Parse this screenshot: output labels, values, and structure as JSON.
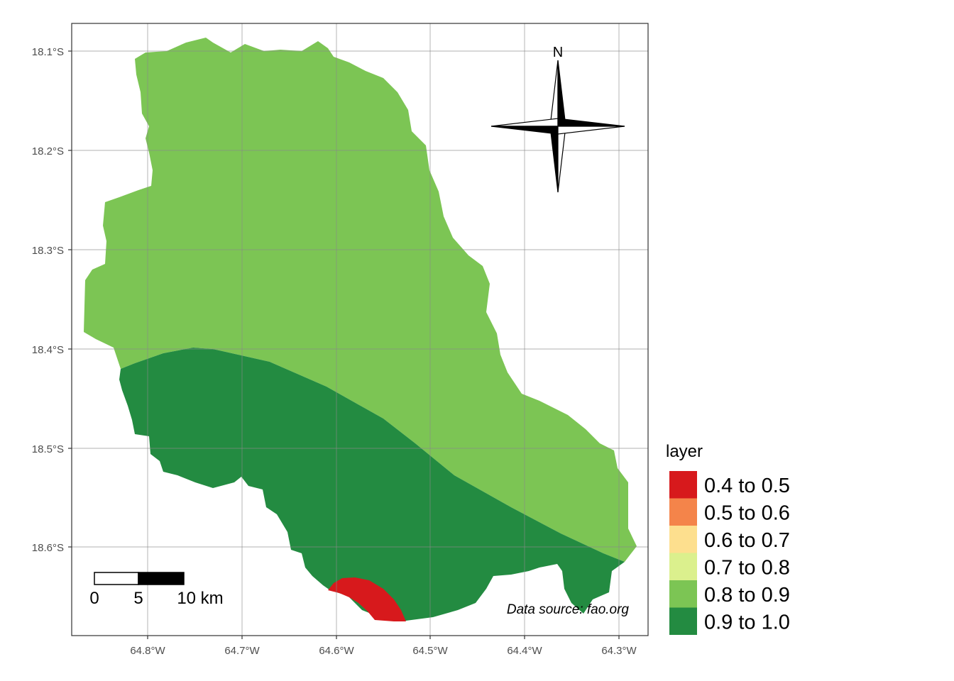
{
  "map": {
    "y_ticks": [
      "18.1°S",
      "18.2°S",
      "18.3°S",
      "18.4°S",
      "18.5°S",
      "18.6°S"
    ],
    "x_ticks": [
      "64.8°W",
      "64.7°W",
      "64.6°W",
      "64.5°W",
      "64.4°W",
      "64.3°W"
    ],
    "north_label": "N",
    "caption": "Data source: fao.org",
    "grid": true
  },
  "scale_bar": {
    "labels": [
      "0",
      "5",
      "10 km"
    ]
  },
  "legend": {
    "title": "layer",
    "items": [
      {
        "label": "0.4 to 0.5",
        "color": "#d7191c"
      },
      {
        "label": "0.5 to 0.6",
        "color": "#f4844a"
      },
      {
        "label": "0.6 to 0.7",
        "color": "#fddf8e"
      },
      {
        "label": "0.7 to 0.8",
        "color": "#dbf08d"
      },
      {
        "label": "0.8 to 0.9",
        "color": "#7cc554"
      },
      {
        "label": "0.9 to 1.0",
        "color": "#238b41"
      }
    ]
  },
  "regions": [
    {
      "class": "0.8 to 0.9",
      "color": "#7cc554"
    },
    {
      "class": "0.9 to 1.0",
      "color": "#238b41"
    },
    {
      "class": "0.4 to 0.5",
      "color": "#d7191c"
    }
  ]
}
